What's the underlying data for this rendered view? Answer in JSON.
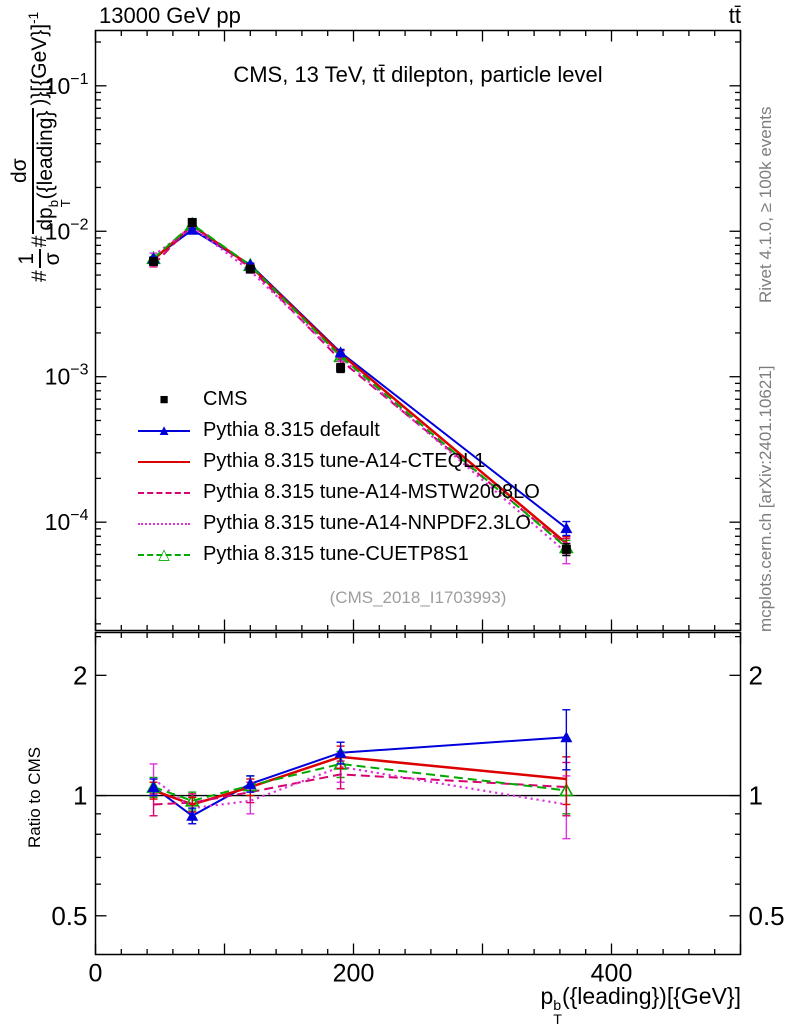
{
  "header": {
    "beam": "13000 GeV pp",
    "process": "tt̄"
  },
  "watermarks": {
    "right_top": "Rivet 4.1.0, ≥ 100k events",
    "right_bottom": "mcplots.cern.ch [arXiv:2401.10621]",
    "analysis_id": "(CMS_2018_I1703993)"
  },
  "labels": {
    "main_y": {
      "hash1": "#",
      "frac1_num": "1",
      "frac1_den": "σ",
      "hash2": "#",
      "frac2_num": "dσ",
      "frac2_den_pre": "dp",
      "frac2_den_sup": "b",
      "frac2_den_sub": "T",
      "frac2_den_post": "({leading}",
      "tail": ")}[{GeV}]",
      "tail_sup": "-1"
    },
    "x": {
      "pre": "p",
      "sup": "b",
      "sub": "T",
      "post": "({leading})[{GeV}]"
    }
  },
  "chart_data": [
    {
      "type": "line",
      "panel": "main",
      "title": "CMS, 13 TeV, tt̄ dilepton, particle level",
      "ylabel": "(1/σ) dσ/dp_T^b({leading}) [{GeV}]^-1",
      "xlabel": "p_T^b({leading}) [{GeV}]",
      "yscale": "log",
      "xlim": [
        0,
        500
      ],
      "ylim": [
        1.8e-05,
        0.24
      ],
      "xticks": [
        0,
        200,
        400
      ],
      "xtick_major_step": 100,
      "xtick_minor_step": 20,
      "ytick_exponents": [
        -1,
        -2,
        -3,
        -4
      ],
      "legend_position": "middle-left",
      "grid": false,
      "x": [
        45,
        75,
        120,
        190,
        365
      ],
      "series": [
        {
          "name": "CMS",
          "color": "#000000",
          "marker": "square-filled",
          "line": "none",
          "lw": 2,
          "values": [
            0.0062,
            0.0115,
            0.0055,
            0.00115,
            6.5e-05
          ],
          "yerr": [
            0.0003,
            0.0004,
            0.0002,
            8e-05,
            6e-06
          ]
        },
        {
          "name": "Pythia 8.315 default",
          "color": "#0000dd",
          "marker": "triangle-filled",
          "line": "solid",
          "lw": 2,
          "values": [
            0.00651,
            0.01024,
            0.00589,
            0.00147,
            9.1e-05
          ],
          "yerr": [
            0.00015,
            0.0002,
            0.00015,
            7e-05,
            1e-05
          ]
        },
        {
          "name": "Pythia 8.315 tune-A14-CTEQL1",
          "color": "#dd0000",
          "marker": "none",
          "line": "solid",
          "lw": 2.5,
          "values": [
            0.00639,
            0.01093,
            0.00578,
            0.00144,
            7.15e-05
          ],
          "yerr": [
            0.00015,
            0.0002,
            0.00015,
            7e-05,
            8e-06
          ]
        },
        {
          "name": "Pythia 8.315 tune-A14-MSTW2008LO",
          "color": "#d6006f",
          "marker": "none",
          "line": "dashed",
          "lw": 2,
          "values": [
            0.00589,
            0.01104,
            0.00561,
            0.0013,
            6.83e-05
          ],
          "yerr": [
            0.0002,
            0.0002,
            0.00015,
            7e-05,
            9e-06
          ]
        },
        {
          "name": "Pythia 8.315 tune-A14-NNPDF2.3LO",
          "color": "#dd33dd",
          "marker": "none",
          "line": "dotted",
          "lw": 2.2,
          "values": [
            0.00682,
            0.0107,
            0.00534,
            0.00136,
            6.18e-05
          ],
          "yerr": [
            0.00025,
            0.00025,
            0.00018,
            8e-05,
            1e-05
          ]
        },
        {
          "name": "Pythia 8.315 tune-CUETP8S1",
          "color": "#00aa00",
          "marker": "triangle-open",
          "line": "dashed",
          "lw": 2,
          "values": [
            0.00651,
            0.01116,
            0.00583,
            0.00138,
            6.7e-05
          ],
          "yerr": [
            0.00017,
            0.0002,
            0.00015,
            7e-05,
            8e-06
          ]
        }
      ]
    },
    {
      "type": "line",
      "panel": "ratio",
      "ylabel": "Ratio to CMS",
      "yscale": "log",
      "xlim": [
        0,
        500
      ],
      "ylim": [
        0.4,
        2.56
      ],
      "yticks": [
        0.5,
        1,
        2
      ],
      "ytick_minor": [
        0.6,
        0.7,
        0.8,
        0.9,
        2.5
      ],
      "reference_line": 1,
      "x": [
        45,
        75,
        120,
        190,
        365
      ],
      "series": [
        {
          "name": "Pythia 8.315 default",
          "color": "#0000dd",
          "marker": "triangle-filled",
          "line": "solid",
          "lw": 2,
          "values": [
            1.05,
            0.89,
            1.07,
            1.28,
            1.4
          ],
          "yerr": [
            0.05,
            0.04,
            0.05,
            0.08,
            0.24
          ]
        },
        {
          "name": "Pythia 8.315 tune-A14-CTEQL1",
          "color": "#dd0000",
          "marker": "none",
          "line": "solid",
          "lw": 2.5,
          "values": [
            1.03,
            0.95,
            1.05,
            1.25,
            1.1
          ],
          "yerr": [
            0.05,
            0.04,
            0.05,
            0.08,
            0.15
          ]
        },
        {
          "name": "Pythia 8.315 tune-A14-MSTW2008LO",
          "color": "#d6006f",
          "marker": "none",
          "line": "dashed",
          "lw": 2,
          "values": [
            0.95,
            0.96,
            1.02,
            1.13,
            1.05
          ],
          "yerr": [
            0.06,
            0.05,
            0.06,
            0.09,
            0.16
          ]
        },
        {
          "name": "Pythia 8.315 tune-A14-NNPDF2.3LO",
          "color": "#dd33dd",
          "marker": "none",
          "line": "dotted",
          "lw": 2.2,
          "values": [
            1.1,
            0.93,
            0.97,
            1.18,
            0.95
          ],
          "yerr": [
            0.1,
            0.06,
            0.07,
            0.1,
            0.17
          ]
        },
        {
          "name": "Pythia 8.315 tune-CUETP8S1",
          "color": "#00aa00",
          "marker": "triangle-open",
          "line": "dashed",
          "lw": 2,
          "values": [
            1.05,
            0.97,
            1.06,
            1.2,
            1.03
          ],
          "yerr": [
            0.06,
            0.05,
            0.06,
            0.09,
            0.13
          ]
        }
      ]
    }
  ]
}
